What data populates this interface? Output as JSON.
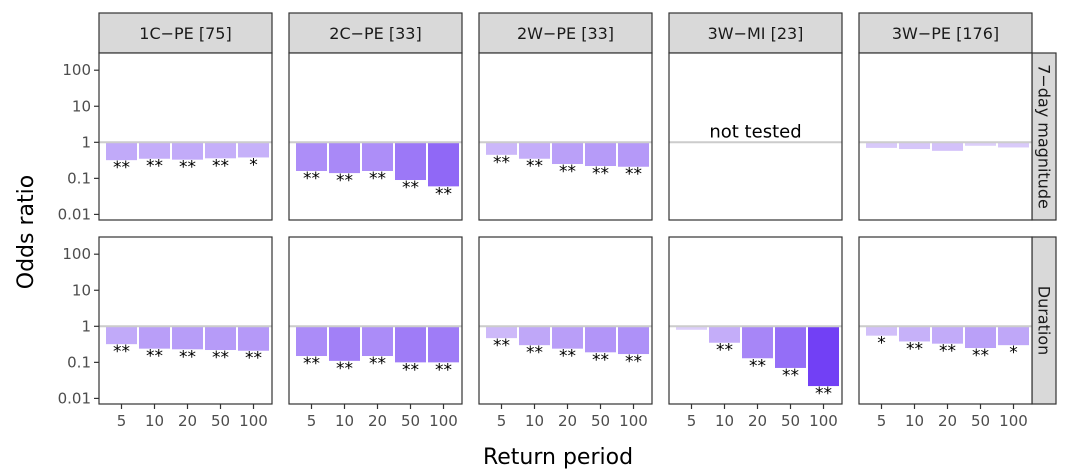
{
  "chart_data": {
    "type": "bar",
    "xlabel": "Return period",
    "ylabel": "Odds ratio",
    "y_scale": "log",
    "ylim": [
      0.007,
      300
    ],
    "y_ticks": [
      "0.01",
      "0.1",
      "1",
      "10",
      "100"
    ],
    "y_tick_values": [
      0.01,
      0.1,
      1,
      10,
      100
    ],
    "reference_line": 1,
    "categories": [
      "5",
      "10",
      "20",
      "50",
      "100"
    ],
    "columns": [
      "1C−PE [75]",
      "2C−PE [33]",
      "2W−PE [33]",
      "3W−MI [23]",
      "3W−PE [176]"
    ],
    "rows": [
      "7−day magnitude",
      "Duration"
    ],
    "grid": false,
    "legend": "none",
    "not_tested_label": "not tested",
    "color_scale": {
      "light": "#e3d7fa",
      "dark": "#6f3cf5"
    },
    "panels": [
      {
        "row": 0,
        "col": 0,
        "values": [
          0.32,
          0.35,
          0.33,
          0.36,
          0.38
        ],
        "sig": [
          "**",
          "**",
          "**",
          "**",
          "*"
        ]
      },
      {
        "row": 0,
        "col": 1,
        "values": [
          0.16,
          0.14,
          0.16,
          0.09,
          0.06
        ],
        "sig": [
          "**",
          "**",
          "**",
          "**",
          "**"
        ]
      },
      {
        "row": 0,
        "col": 2,
        "values": [
          0.45,
          0.35,
          0.25,
          0.22,
          0.21
        ],
        "sig": [
          "**",
          "**",
          "**",
          "**",
          "**"
        ]
      },
      {
        "row": 0,
        "col": 3,
        "values": [],
        "sig": [],
        "not_tested": true
      },
      {
        "row": 0,
        "col": 4,
        "values": [
          0.7,
          0.65,
          0.58,
          0.8,
          0.72
        ],
        "sig": [
          "",
          "",
          "",
          "",
          ""
        ]
      },
      {
        "row": 1,
        "col": 0,
        "values": [
          0.32,
          0.24,
          0.23,
          0.22,
          0.21
        ],
        "sig": [
          "**",
          "**",
          "**",
          "**",
          "**"
        ]
      },
      {
        "row": 1,
        "col": 1,
        "values": [
          0.15,
          0.11,
          0.15,
          0.1,
          0.1
        ],
        "sig": [
          "**",
          "**",
          "**",
          "**",
          "**"
        ]
      },
      {
        "row": 1,
        "col": 2,
        "values": [
          0.47,
          0.3,
          0.24,
          0.19,
          0.17
        ],
        "sig": [
          "**",
          "**",
          "**",
          "**",
          "**"
        ]
      },
      {
        "row": 1,
        "col": 3,
        "values": [
          0.8,
          0.35,
          0.13,
          0.07,
          0.022
        ],
        "sig": [
          "",
          "**",
          "**",
          "**",
          "**"
        ]
      },
      {
        "row": 1,
        "col": 4,
        "values": [
          0.55,
          0.38,
          0.33,
          0.25,
          0.3
        ],
        "sig": [
          "*",
          "**",
          "**",
          "**",
          "*"
        ]
      }
    ]
  }
}
